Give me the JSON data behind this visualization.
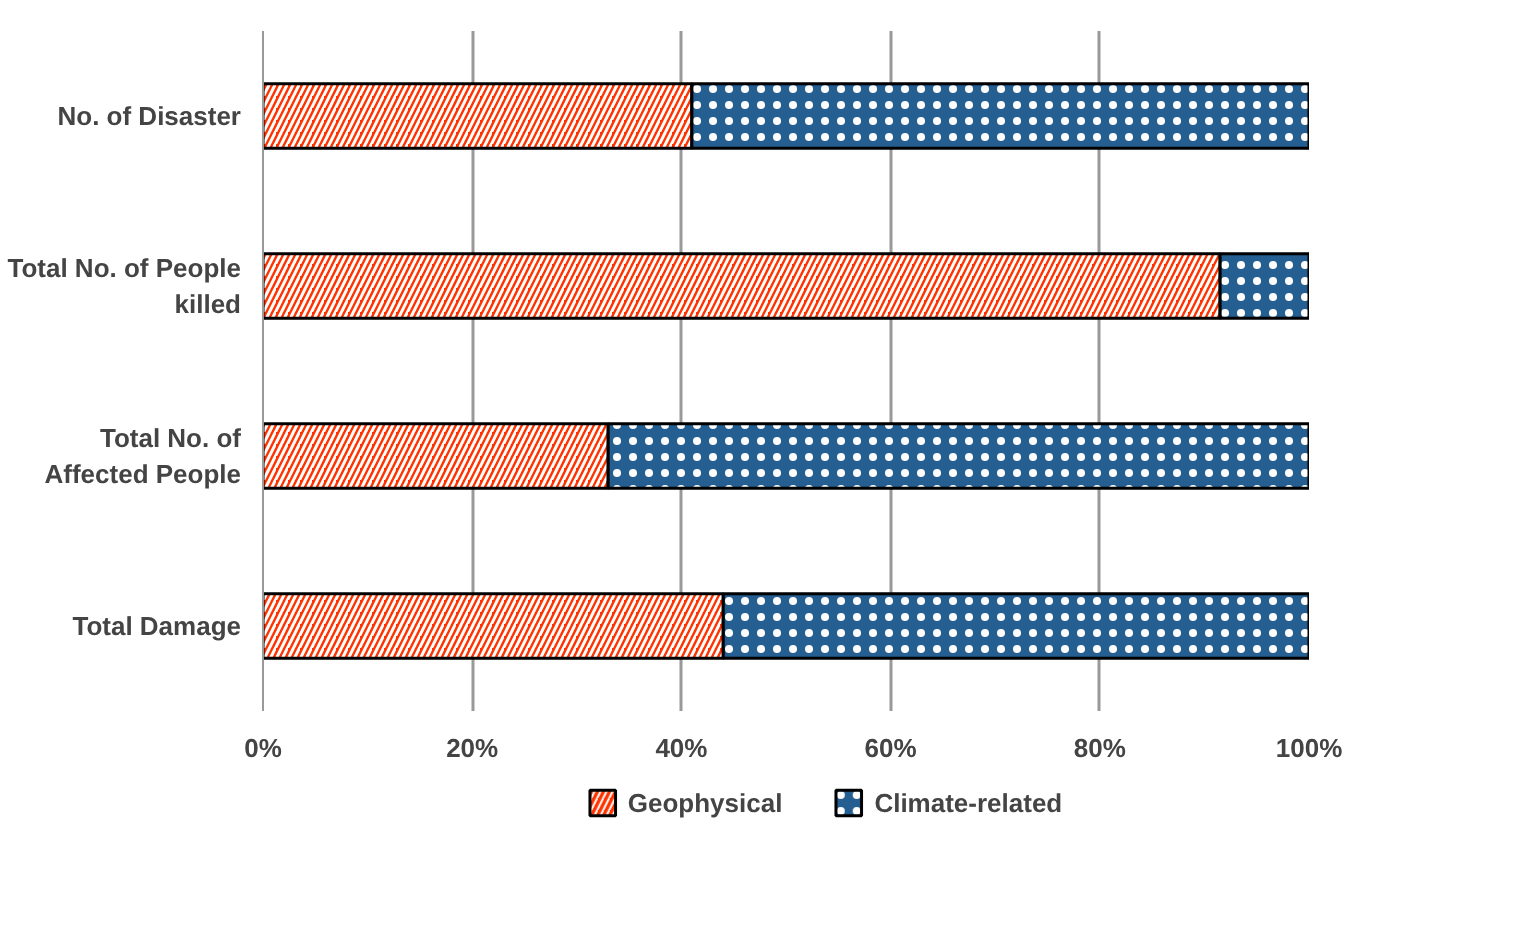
{
  "chart_data": {
    "type": "bar",
    "orientation": "horizontal",
    "stacked": true,
    "categories": [
      "No. of Disaster",
      "Total No. of People killed",
      "Total No. of Affected People",
      "Total Damage"
    ],
    "series": [
      {
        "name": "Geophysical",
        "color": "#ff3300",
        "values": [
          41,
          91.5,
          33,
          44
        ]
      },
      {
        "name": "Climate-related",
        "color": "#255e91",
        "values": [
          59,
          8.5,
          67,
          56
        ]
      }
    ],
    "xlim": [
      0,
      100
    ],
    "xticks": [
      {
        "value": 0,
        "label": "0%"
      },
      {
        "value": 20,
        "label": "20%"
      },
      {
        "value": 40,
        "label": "40%"
      },
      {
        "value": 60,
        "label": "60%"
      },
      {
        "value": 80,
        "label": "80%"
      },
      {
        "value": 100,
        "label": "100%"
      }
    ],
    "grid": "x",
    "legend": "bottom"
  }
}
